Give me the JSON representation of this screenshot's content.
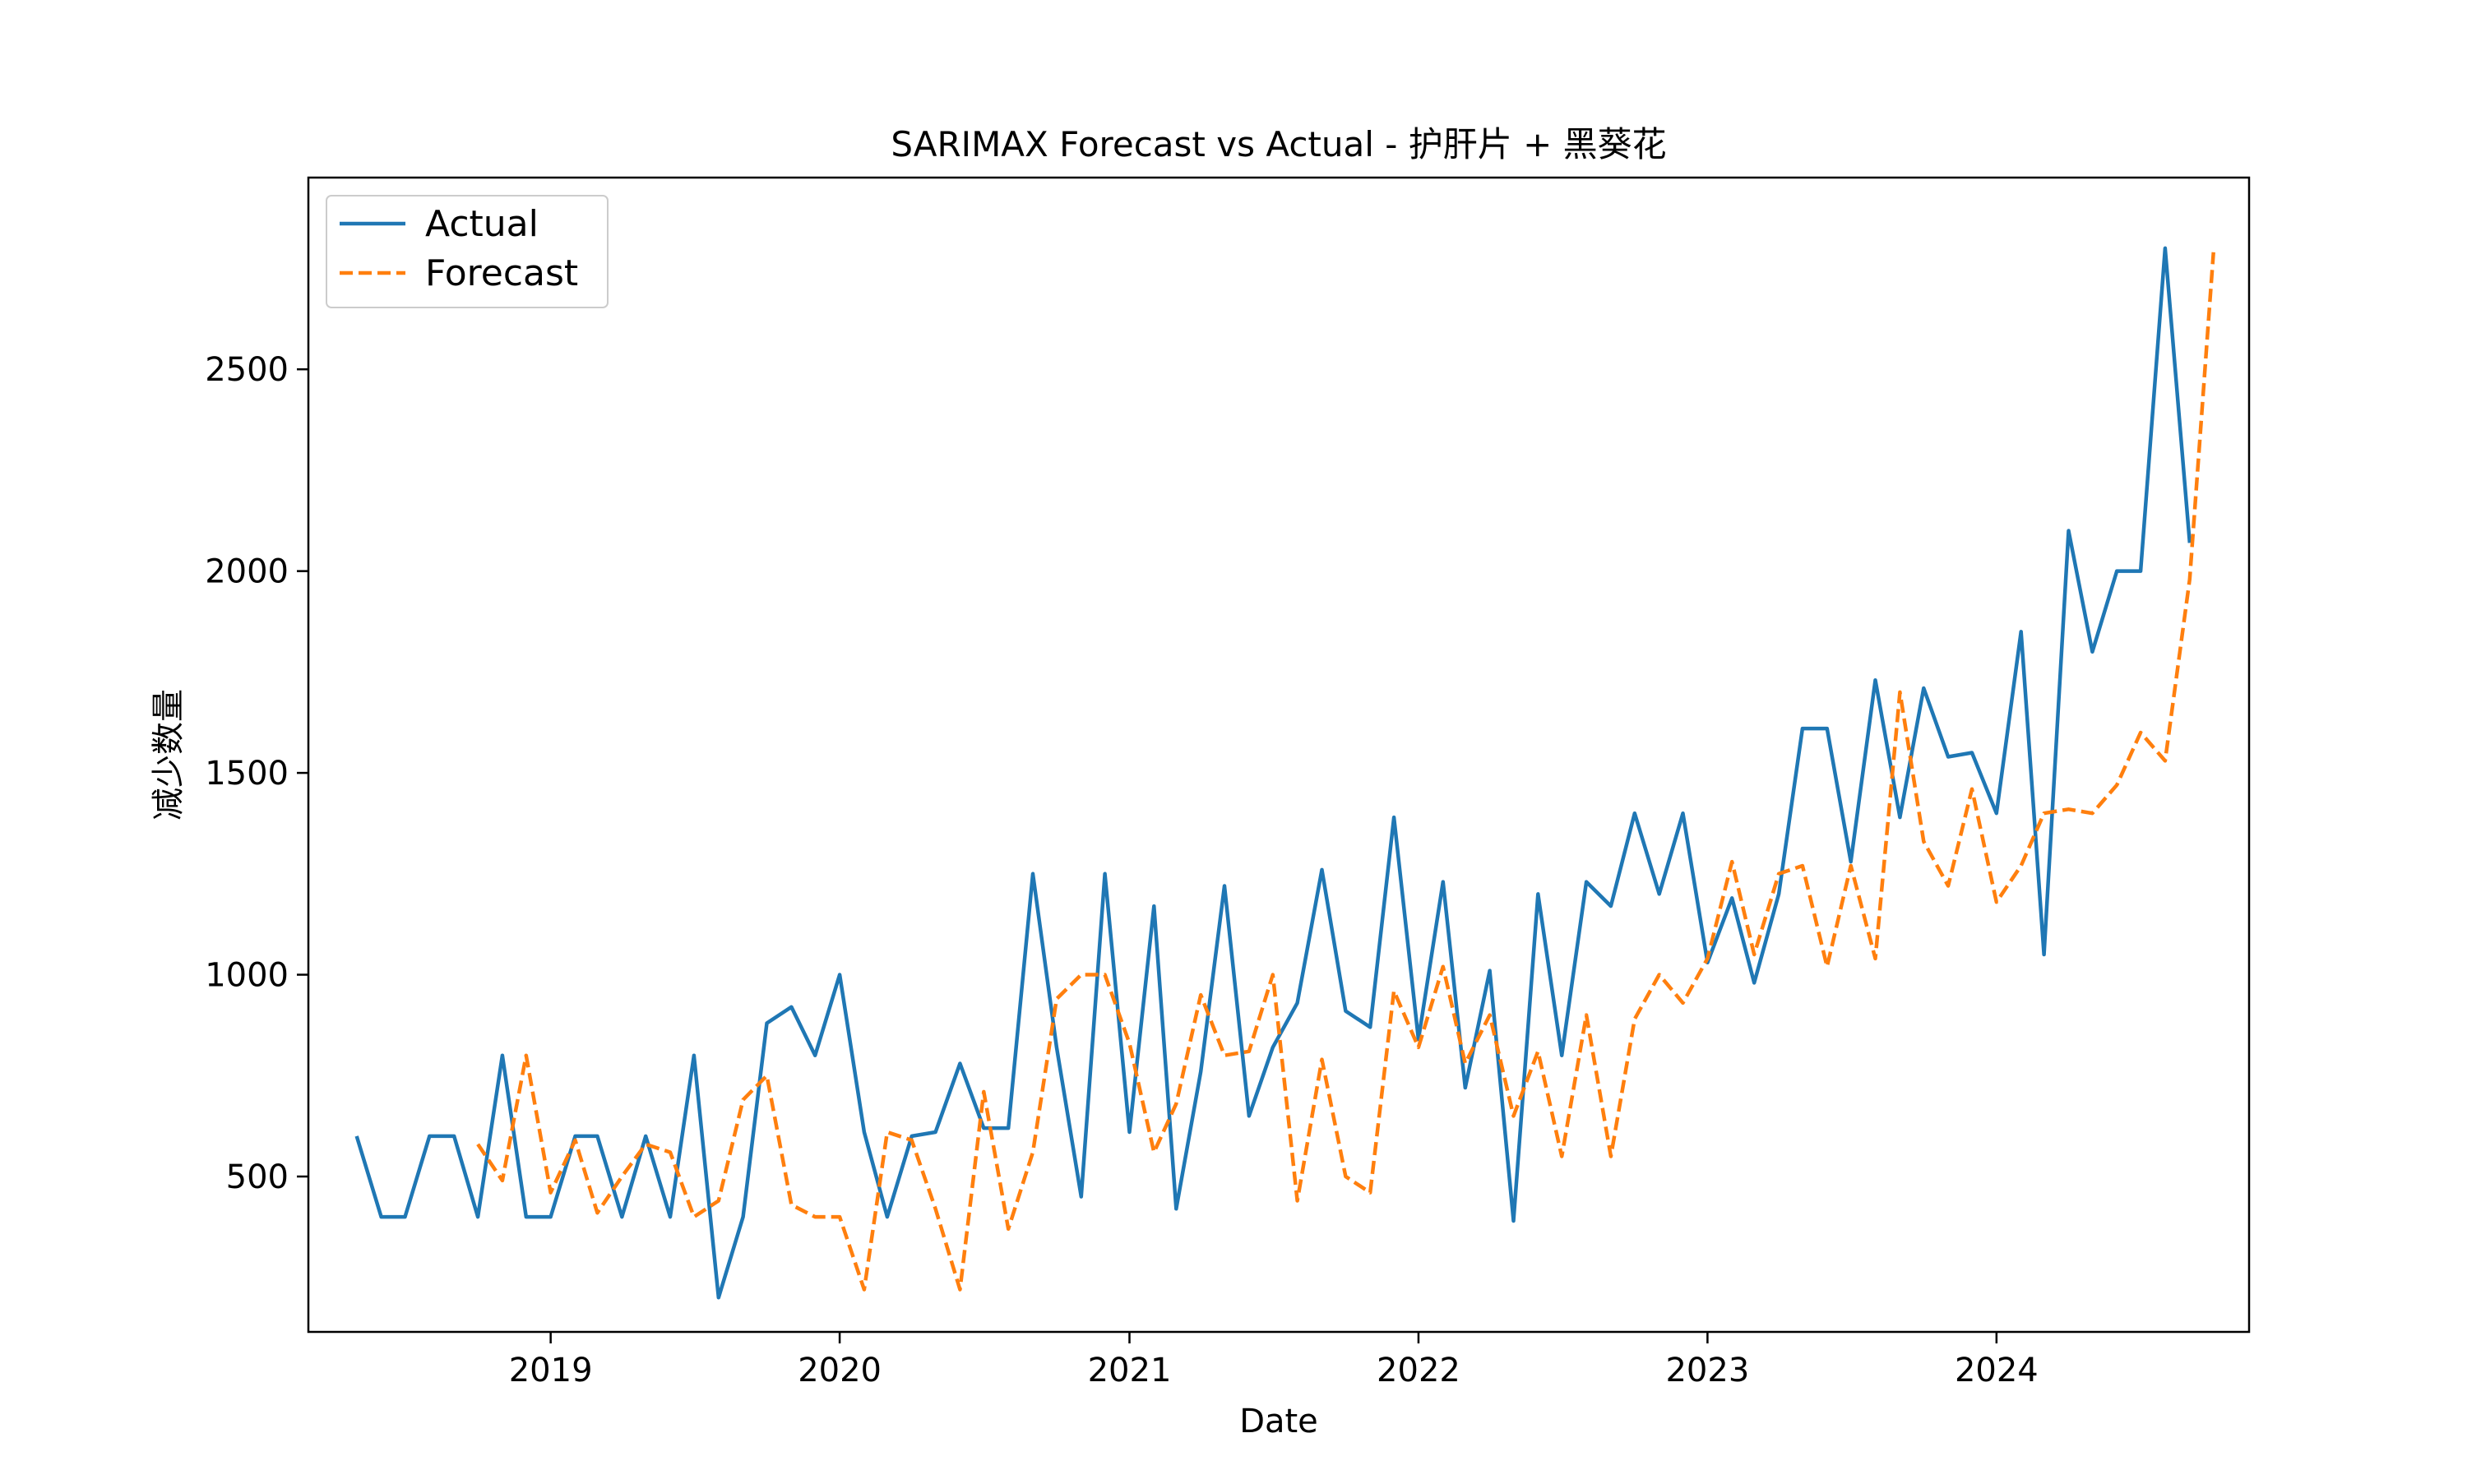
{
  "chart_data": {
    "type": "line",
    "title": "SARIMAX Forecast vs Actual - 护肝片 + 黑葵花",
    "xlabel": "Date",
    "ylabel": "减少数量",
    "x_ticks": [
      "2019",
      "2020",
      "2021",
      "2022",
      "2023",
      "2024"
    ],
    "y_ticks": [
      "500",
      "1000",
      "1500",
      "2000",
      "2500"
    ],
    "xlim": [
      "2018-03-01",
      "2024-11-15"
    ],
    "ylim": [
      115,
      2975
    ],
    "grid": false,
    "legend": "upper-left",
    "series": [
      {
        "name": "Actual",
        "color": "#1f77b4",
        "dash": "solid",
        "start": "2018-05",
        "values": [
          600,
          400,
          400,
          600,
          600,
          400,
          800,
          400,
          400,
          600,
          600,
          400,
          600,
          400,
          800,
          200,
          400,
          880,
          920,
          800,
          1000,
          610,
          400,
          600,
          610,
          780,
          620,
          620,
          1250,
          820,
          450,
          1250,
          610,
          1170,
          420,
          760,
          1220,
          650,
          820,
          930,
          1260,
          910,
          870,
          1390,
          840,
          1230,
          720,
          1010,
          390,
          1200,
          800,
          1230,
          1170,
          1400,
          1200,
          1400,
          1030,
          1190,
          980,
          1200,
          1610,
          1610,
          1280,
          1730,
          1390,
          1710,
          1540,
          1550,
          1400,
          1850,
          1050,
          2100,
          1800,
          2000,
          2000,
          2800,
          2070
        ]
      },
      {
        "name": "Forecast",
        "color": "#ff7f0e",
        "dash": "dashed",
        "start": "2018-10",
        "values": [
          580,
          490,
          800,
          460,
          590,
          410,
          500,
          580,
          560,
          400,
          440,
          690,
          750,
          430,
          400,
          400,
          220,
          610,
          590,
          420,
          220,
          710,
          370,
          560,
          940,
          1000,
          1000,
          830,
          560,
          680,
          950,
          800,
          810,
          1000,
          440,
          790,
          500,
          460,
          960,
          820,
          1020,
          780,
          900,
          650,
          810,
          550,
          900,
          550,
          890,
          1000,
          930,
          1040,
          1280,
          1050,
          1250,
          1270,
          1020,
          1270,
          1040,
          1700,
          1330,
          1220,
          1460,
          1180,
          1270,
          1400,
          1410,
          1400,
          1470,
          1600,
          1530,
          1980,
          2790
        ]
      }
    ]
  }
}
